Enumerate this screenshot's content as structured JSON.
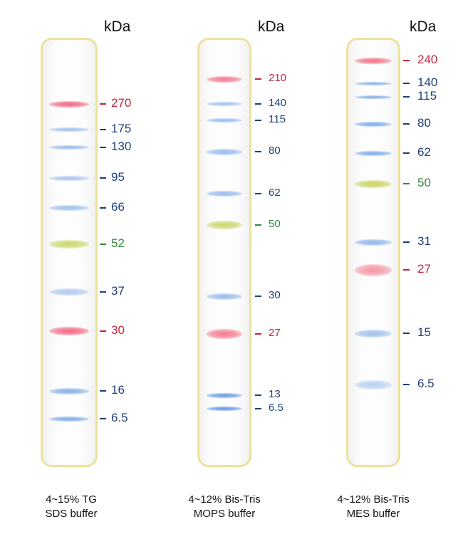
{
  "unit_label": "kDa",
  "palette": {
    "red": "#c0283c",
    "blue": "#1f3f7a",
    "green": "#2f8a3a",
    "lane_border": "#ece39a"
  },
  "panels": [
    {
      "caption_line1": "4~15% TG",
      "caption_line2": "SDS buffer",
      "markers": [
        {
          "mw": "270",
          "color": "red"
        },
        {
          "mw": "175",
          "color": "blue"
        },
        {
          "mw": "130",
          "color": "blue"
        },
        {
          "mw": "95",
          "color": "blue"
        },
        {
          "mw": "66",
          "color": "blue"
        },
        {
          "mw": "52",
          "color": "green"
        },
        {
          "mw": "37",
          "color": "blue"
        },
        {
          "mw": "30",
          "color": "red"
        },
        {
          "mw": "16",
          "color": "blue"
        },
        {
          "mw": "6.5",
          "color": "blue"
        }
      ]
    },
    {
      "caption_line1": "4~12% Bis-Tris",
      "caption_line2": "MOPS buffer",
      "markers": [
        {
          "mw": "210",
          "color": "red"
        },
        {
          "mw": "140",
          "color": "blue"
        },
        {
          "mw": "115",
          "color": "blue"
        },
        {
          "mw": "80",
          "color": "blue"
        },
        {
          "mw": "62",
          "color": "blue"
        },
        {
          "mw": "50",
          "color": "green"
        },
        {
          "mw": "30",
          "color": "blue"
        },
        {
          "mw": "27",
          "color": "red"
        },
        {
          "mw": "13",
          "color": "blue"
        },
        {
          "mw": "6.5",
          "color": "blue"
        }
      ]
    },
    {
      "caption_line1": "4~12% Bis-Tris",
      "caption_line2": "MES buffer",
      "markers": [
        {
          "mw": "240",
          "color": "red"
        },
        {
          "mw": "140",
          "color": "blue"
        },
        {
          "mw": "115",
          "color": "blue"
        },
        {
          "mw": "80",
          "color": "blue"
        },
        {
          "mw": "62",
          "color": "blue"
        },
        {
          "mw": "50",
          "color": "green"
        },
        {
          "mw": "31",
          "color": "blue"
        },
        {
          "mw": "27",
          "color": "red"
        },
        {
          "mw": "15",
          "color": "blue"
        },
        {
          "mw": "6.5",
          "color": "blue"
        }
      ]
    }
  ]
}
